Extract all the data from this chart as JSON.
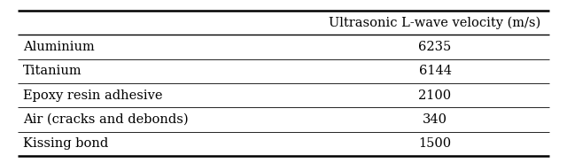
{
  "header": "Ultrasonic L-wave velocity (m/s)",
  "rows": [
    [
      "Aluminium",
      "6235"
    ],
    [
      "Titanium",
      "6144"
    ],
    [
      "Epoxy resin adhesive",
      "2100"
    ],
    [
      "Air (cracks and debonds)",
      "340"
    ],
    [
      "Kissing bond",
      "1500"
    ]
  ],
  "background_color": "#ffffff",
  "text_color": "#000000",
  "font_size": 10.5,
  "figwidth": 6.4,
  "figheight": 1.84,
  "dpi": 100
}
